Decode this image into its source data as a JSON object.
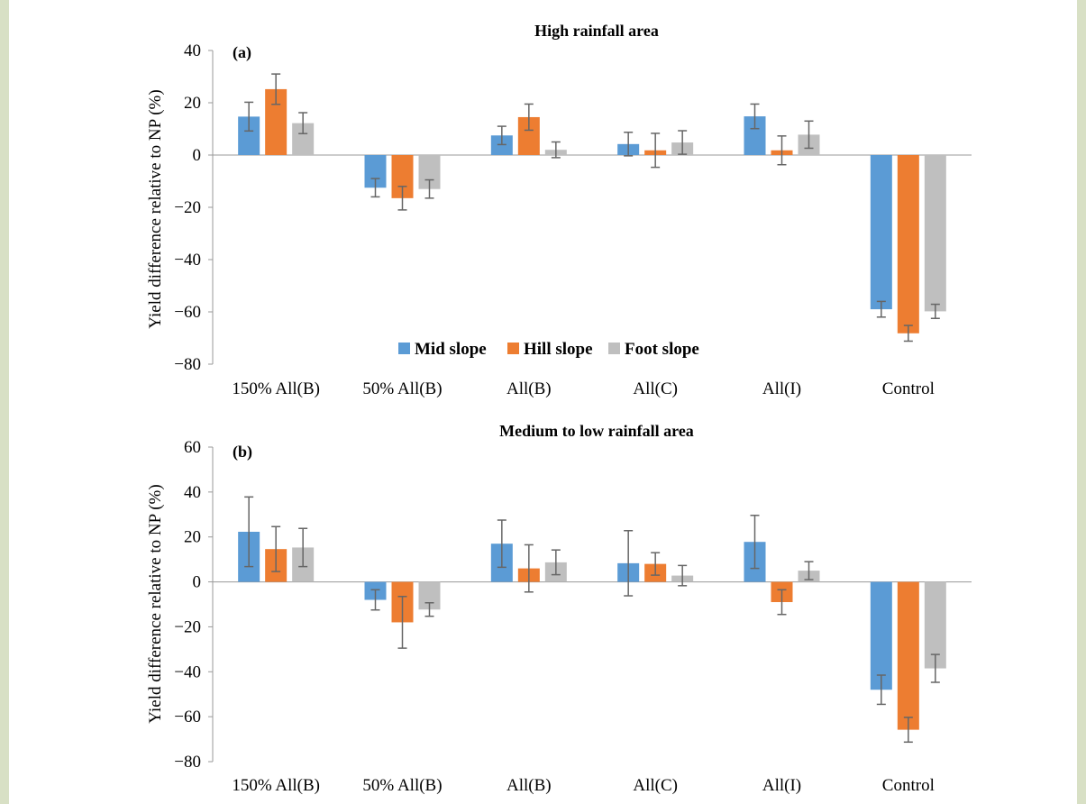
{
  "chart_data": [
    {
      "type": "bar",
      "panel_label": "(a)",
      "title": "High rainfall area",
      "ylabel": "Yield difference relative to NP (%)",
      "ylim": [
        -80,
        40
      ],
      "yticks": [
        40,
        20,
        0,
        -20,
        -40,
        -60,
        -80
      ],
      "ytick_labels": [
        "40",
        "20",
        "0",
        "−20",
        "−40",
        "−60",
        "−80"
      ],
      "categories": [
        "150% All(B)",
        "50% All(B)",
        "All(B)",
        "All(C)",
        "All(I)",
        "Control"
      ],
      "legend": "inside-bottom-center",
      "series": [
        {
          "name": "Mid slope",
          "color": "#5b9bd5",
          "values": [
            14.7,
            -12.5,
            7.5,
            4.2,
            14.8,
            -59.0
          ],
          "errors": [
            5.5,
            3.5,
            3.5,
            4.5,
            4.7,
            3.0
          ]
        },
        {
          "name": "Hill slope",
          "color": "#ed7d31",
          "values": [
            25.2,
            -16.5,
            14.5,
            1.8,
            1.8,
            -68.2
          ],
          "errors": [
            5.8,
            4.5,
            5.0,
            6.5,
            5.5,
            3.0
          ]
        },
        {
          "name": "Foot slope",
          "color": "#bfbfbf",
          "values": [
            12.2,
            -13.0,
            2.0,
            4.8,
            7.8,
            -59.8
          ],
          "errors": [
            4.0,
            3.5,
            3.0,
            4.5,
            5.2,
            2.7
          ]
        }
      ]
    },
    {
      "type": "bar",
      "panel_label": "(b)",
      "title": "Medium to low rainfall area",
      "ylabel": "Yield difference relative to NP (%)",
      "ylim": [
        -80,
        60
      ],
      "yticks": [
        60,
        40,
        20,
        0,
        -20,
        -40,
        -60,
        -80
      ],
      "ytick_labels": [
        "60",
        "40",
        "20",
        "0",
        "−20",
        "−40",
        "−60",
        "−80"
      ],
      "categories": [
        "150% All(B)",
        "50% All(B)",
        "All(B)",
        "All(C)",
        "All(I)",
        "Control"
      ],
      "series": [
        {
          "name": "Mid slope",
          "color": "#5b9bd5",
          "values": [
            22.3,
            -8.0,
            17.0,
            8.3,
            17.8,
            -48.0
          ],
          "errors": [
            15.5,
            4.5,
            10.5,
            14.5,
            11.8,
            6.5
          ]
        },
        {
          "name": "Hill slope",
          "color": "#ed7d31",
          "values": [
            14.6,
            -18.0,
            6.0,
            8.0,
            -9.0,
            -65.8
          ],
          "errors": [
            10.0,
            11.5,
            10.5,
            5.0,
            5.5,
            5.5
          ]
        },
        {
          "name": "Foot slope",
          "color": "#bfbfbf",
          "values": [
            15.3,
            -12.3,
            8.7,
            2.8,
            5.0,
            -38.5
          ],
          "errors": [
            8.5,
            3.0,
            5.5,
            4.5,
            4.0,
            6.2
          ]
        }
      ]
    }
  ]
}
